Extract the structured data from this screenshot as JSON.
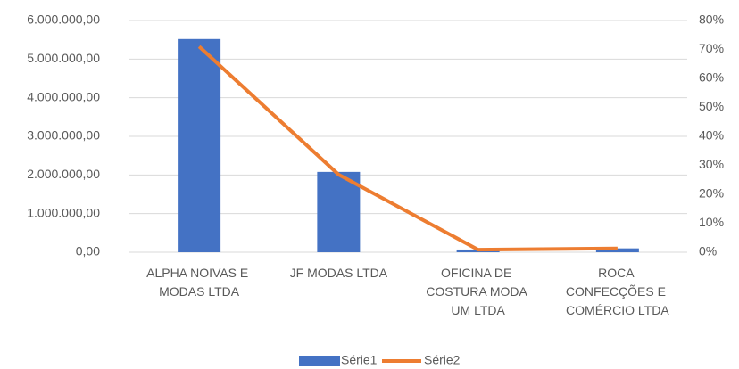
{
  "chart_data": {
    "type": "bar_line",
    "categories": [
      "ALPHA NOIVAS E MODAS LTDA",
      "JF MODAS LTDA",
      "OFICINA DE COSTURA MODA UM LTDA",
      "ROCA CONFECÇÕES E COMÉRCIO LTDA"
    ],
    "series": [
      {
        "name": "Série1",
        "color": "#4472c4",
        "type": "bar",
        "values": [
          5520000,
          2080000,
          70000,
          100000
        ]
      },
      {
        "name": "Série2",
        "color": "#ed7d31",
        "type": "line",
        "axis": "y2",
        "values": [
          71,
          26.8,
          0.9,
          1.3
        ]
      }
    ],
    "ylim": [
      0,
      6000000
    ],
    "yticks": [
      {
        "value": 0,
        "label": "0,00"
      },
      {
        "value": 1000000,
        "label": "1.000.000,00"
      },
      {
        "value": 2000000,
        "label": "2.000.000,00"
      },
      {
        "value": 3000000,
        "label": "3.000.000,00"
      },
      {
        "value": 4000000,
        "label": "4.000.000,00"
      },
      {
        "value": 5000000,
        "label": "5.000.000,00"
      },
      {
        "value": 6000000,
        "label": "6.000.000,00"
      }
    ],
    "y2lim": [
      0,
      80
    ],
    "y2ticks": [
      {
        "value": 0,
        "label": "0%"
      },
      {
        "value": 10,
        "label": "10%"
      },
      {
        "value": 20,
        "label": "20%"
      },
      {
        "value": 30,
        "label": "30%"
      },
      {
        "value": 40,
        "label": "40%"
      },
      {
        "value": 50,
        "label": "50%"
      },
      {
        "value": 60,
        "label": "60%"
      },
      {
        "value": 70,
        "label": "70%"
      },
      {
        "value": 80,
        "label": "80%"
      }
    ],
    "grid": true,
    "legend": "bottom"
  }
}
